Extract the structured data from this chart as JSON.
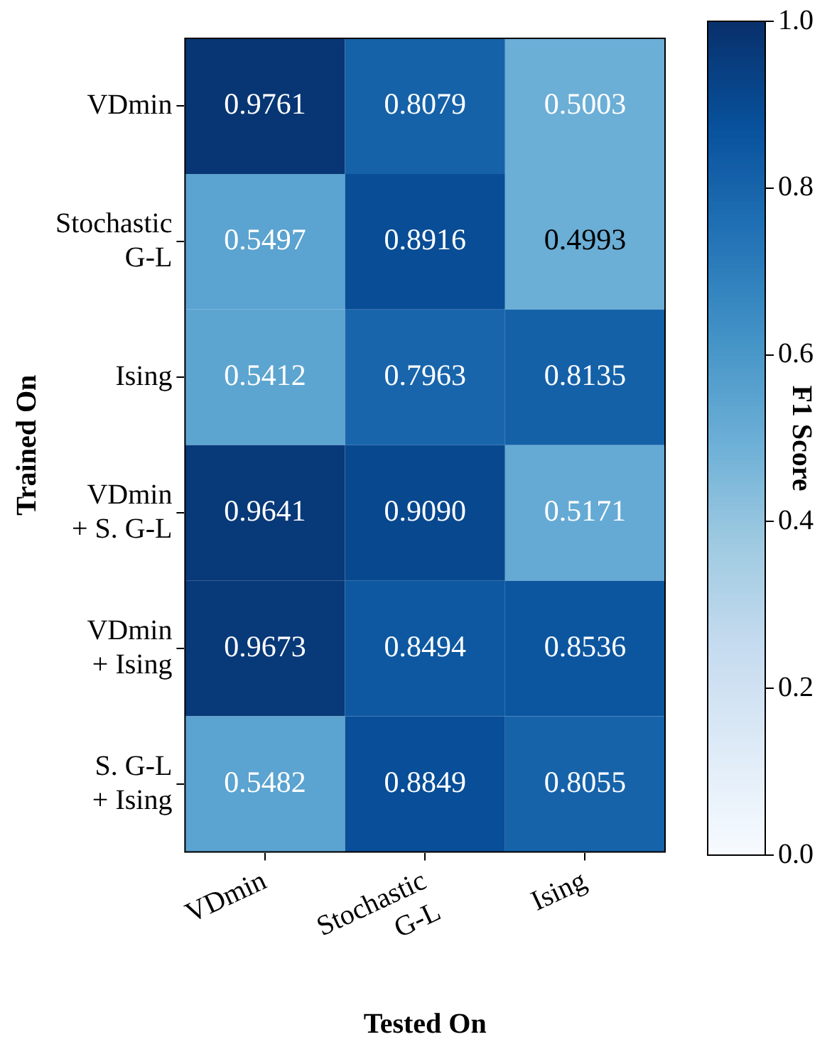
{
  "chart_data": {
    "type": "heatmap",
    "xlabel": "Tested On",
    "ylabel": "Trained On",
    "clabel": "F1 Score",
    "categories": [
      "VDmin",
      "Stochastic\nG-L",
      "Ising"
    ],
    "y_categories": [
      "VDmin",
      "Stochastic\nG-L",
      "Ising",
      "VDmin\n+ S. G-L",
      "VDmin\n+ Ising",
      "S. G-L\n+ Ising"
    ],
    "cells": [
      [
        0.9761,
        0.8079,
        0.5003
      ],
      [
        0.5497,
        0.8916,
        0.4993
      ],
      [
        0.5412,
        0.7963,
        0.8135
      ],
      [
        0.9641,
        0.909,
        0.5171
      ],
      [
        0.9673,
        0.8494,
        0.8536
      ],
      [
        0.5482,
        0.8849,
        0.8055
      ]
    ],
    "cell_labels": [
      [
        "0.9761",
        "0.8079",
        "0.5003"
      ],
      [
        "0.5497",
        "0.8916",
        "0.4993"
      ],
      [
        "0.5412",
        "0.7963",
        "0.8135"
      ],
      [
        "0.9641",
        "0.9090",
        "0.5171"
      ],
      [
        "0.9673",
        "0.8494",
        "0.8536"
      ],
      [
        "0.5482",
        "0.8849",
        "0.8055"
      ]
    ],
    "data_labels": true,
    "clim": [
      0.0,
      1.0
    ],
    "cticks": [
      {
        "value": 0,
        "label": "0.0"
      },
      {
        "value": 0.2,
        "label": "0.2"
      },
      {
        "value": 0.4,
        "label": "0.4"
      },
      {
        "value": 0.6,
        "label": "0.6"
      },
      {
        "value": 0.8,
        "label": "0.8"
      },
      {
        "value": 1,
        "label": "1.0"
      }
    ]
  }
}
